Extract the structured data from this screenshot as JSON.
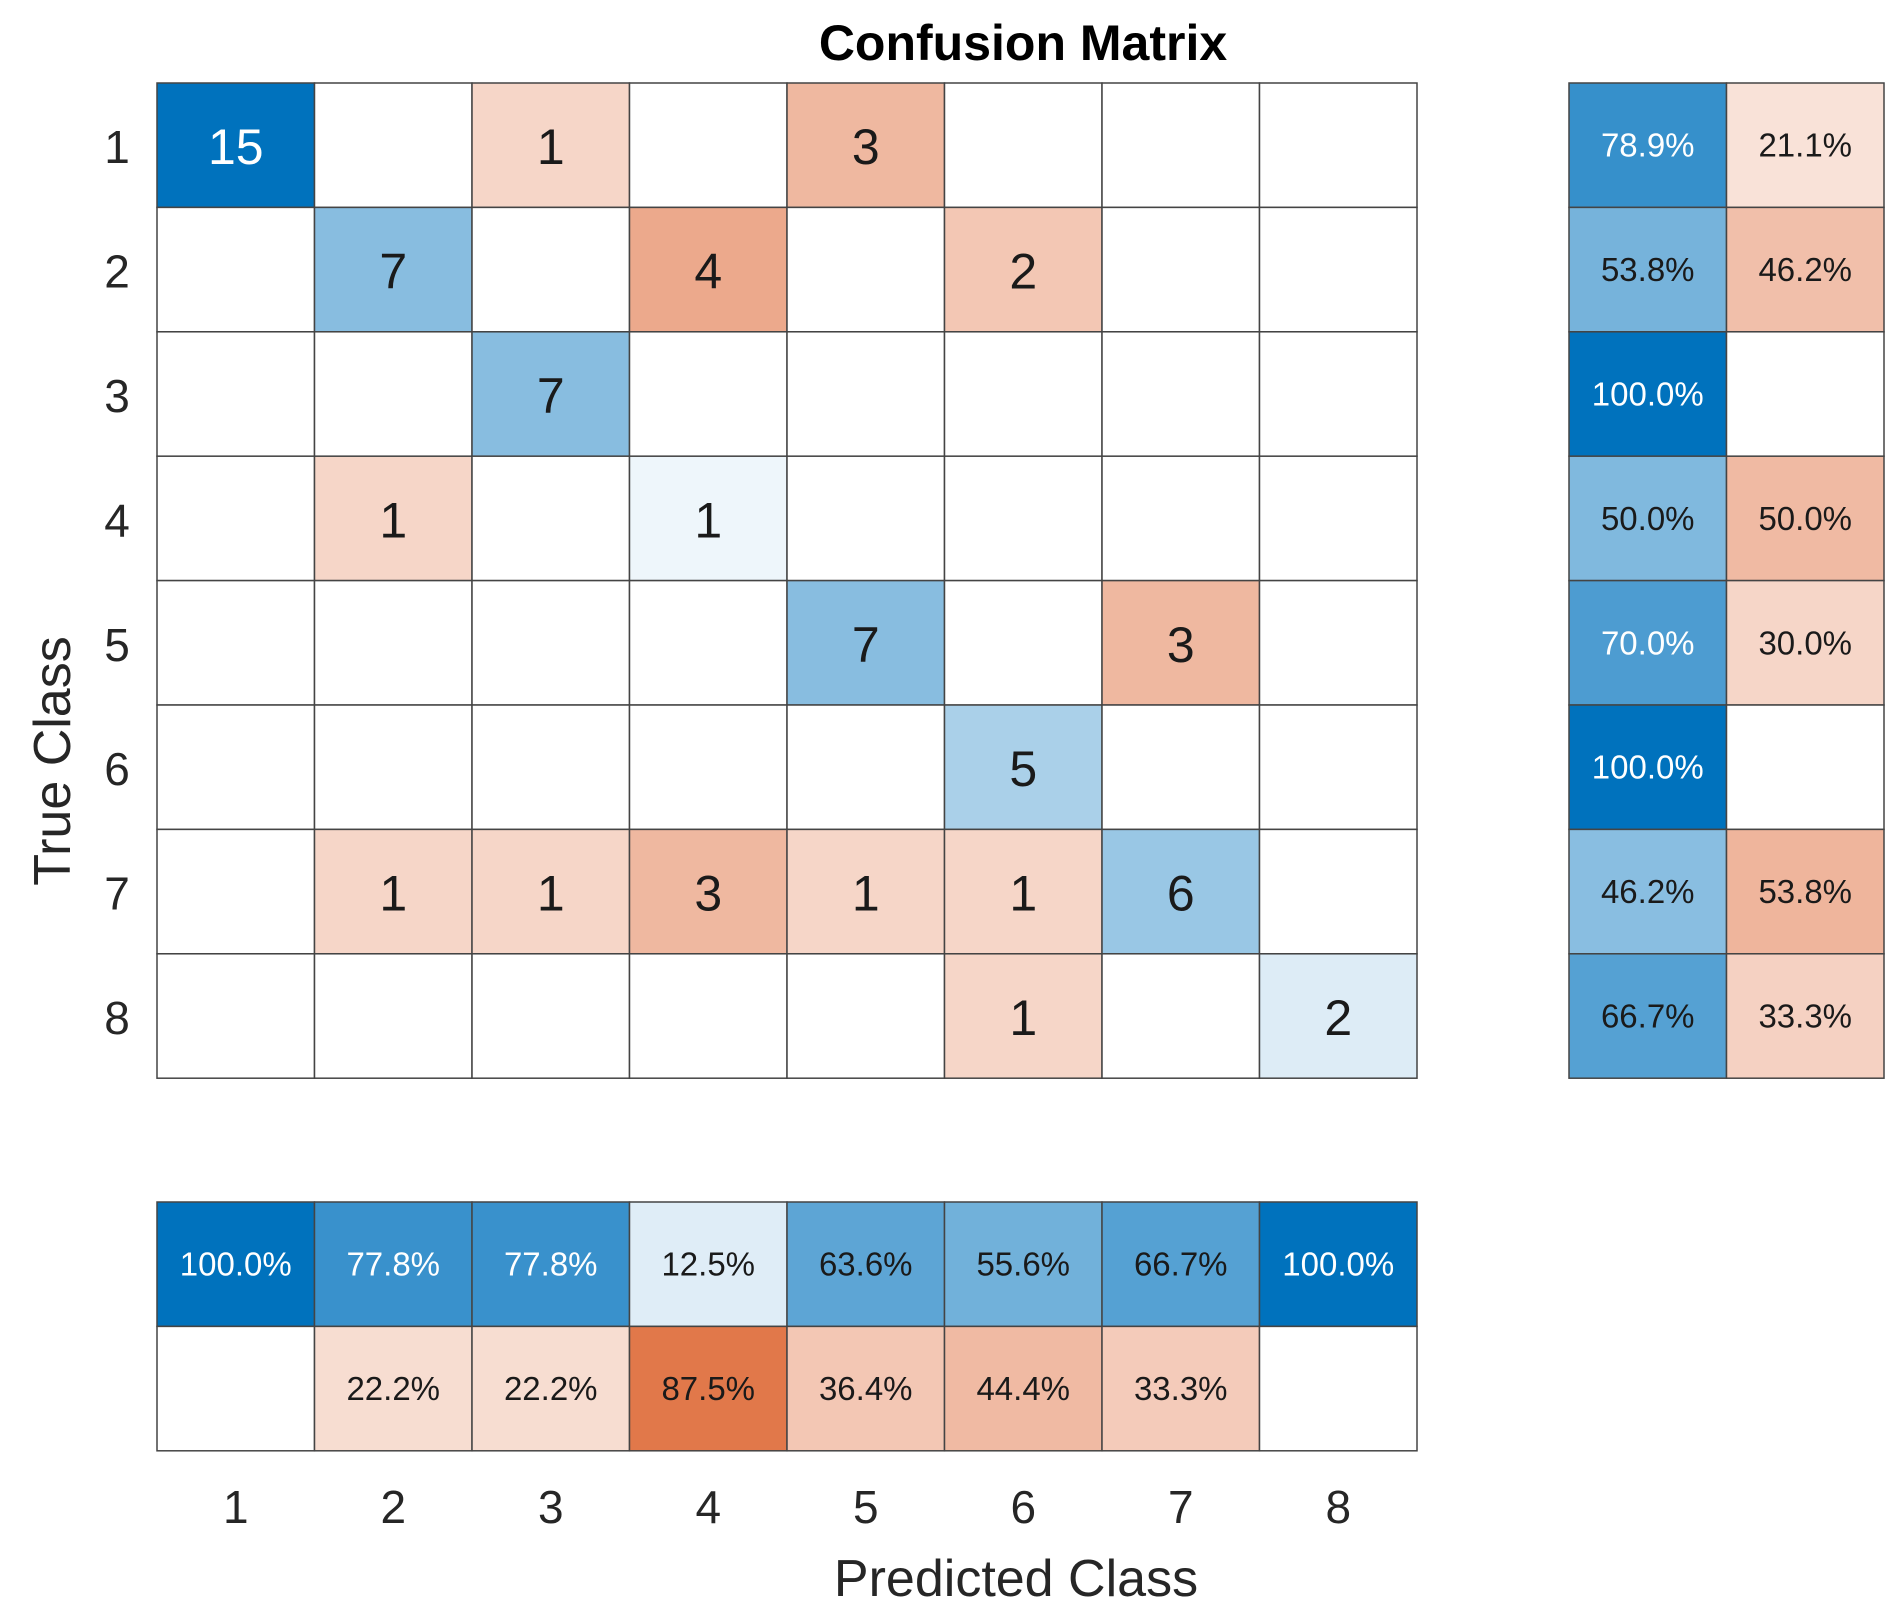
{
  "chart_data": {
    "type": "heatmap",
    "title": "Confusion Matrix",
    "xlabel": "Predicted Class",
    "ylabel": "True Class",
    "classes": [
      "1",
      "2",
      "3",
      "4",
      "5",
      "6",
      "7",
      "8"
    ],
    "matrix": [
      [
        15,
        0,
        1,
        0,
        3,
        0,
        0,
        0
      ],
      [
        0,
        7,
        0,
        4,
        0,
        2,
        0,
        0
      ],
      [
        0,
        0,
        7,
        0,
        0,
        0,
        0,
        0
      ],
      [
        0,
        1,
        0,
        1,
        0,
        0,
        0,
        0
      ],
      [
        0,
        0,
        0,
        0,
        7,
        0,
        3,
        0
      ],
      [
        0,
        0,
        0,
        0,
        0,
        5,
        0,
        0
      ],
      [
        0,
        1,
        1,
        3,
        1,
        1,
        6,
        0
      ],
      [
        0,
        0,
        0,
        0,
        0,
        1,
        0,
        2
      ]
    ],
    "row_summary": {
      "correct": [
        "78.9%",
        "53.8%",
        "100.0%",
        "50.0%",
        "70.0%",
        "100.0%",
        "46.2%",
        "66.7%"
      ],
      "incorrect": [
        "21.1%",
        "46.2%",
        "",
        "50.0%",
        "30.0%",
        "",
        "53.8%",
        "33.3%"
      ]
    },
    "column_summary": {
      "correct": [
        "100.0%",
        "77.8%",
        "77.8%",
        "12.5%",
        "63.6%",
        "55.6%",
        "66.7%",
        "100.0%"
      ],
      "incorrect": [
        "",
        "22.2%",
        "22.2%",
        "87.5%",
        "36.4%",
        "44.4%",
        "33.3%",
        ""
      ]
    },
    "colors": {
      "correct": "#0072BD",
      "incorrect": "#D95319",
      "grid": "#444444",
      "background": "#FFFFFF"
    }
  }
}
